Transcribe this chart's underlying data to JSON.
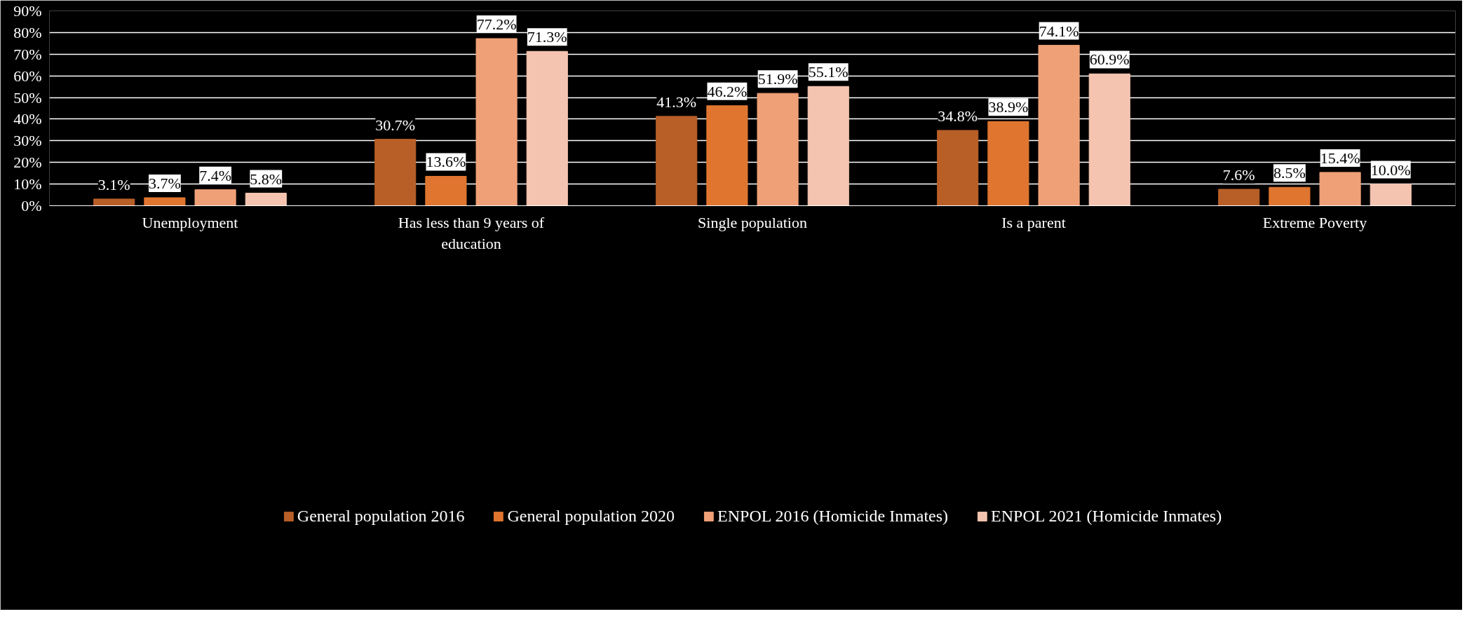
{
  "chart_data": {
    "type": "bar",
    "categories": [
      "Unemployment",
      "Has less than 9 years of education",
      "Single population",
      "Is a parent",
      "Extreme Poverty"
    ],
    "series": [
      {
        "name": "General population 2016",
        "color": "#b85f27",
        "values": [
          3.1,
          30.7,
          41.3,
          34.8,
          7.6
        ],
        "value_labels": [
          "3.1%",
          "30.7%",
          "41.3%",
          "34.8%",
          "7.6%"
        ]
      },
      {
        "name": "General population 2020",
        "color": "#e07530",
        "values": [
          3.7,
          13.6,
          46.2,
          38.9,
          8.5
        ],
        "value_labels": [
          "3.7%",
          "13.6%",
          "46.2%",
          "38.9%",
          "8.5%"
        ]
      },
      {
        "name": "ENPOL 2016 (Homicide Inmates)",
        "color": "#f0a077",
        "values": [
          7.4,
          77.2,
          51.9,
          74.1,
          15.4
        ],
        "value_labels": [
          "7.4%",
          "77.2%",
          "51.9%",
          "74.1%",
          "15.4%"
        ]
      },
      {
        "name": "ENPOL 2021 (Homicide Inmates)",
        "color": "#f5c4b0",
        "values": [
          5.8,
          71.3,
          55.1,
          60.9,
          10.0
        ],
        "value_labels": [
          "5.8%",
          "71.3%",
          "55.1%",
          "60.9%",
          "10.0%"
        ]
      }
    ],
    "ylim": [
      0,
      90
    ],
    "yticks": [
      {
        "value": 0,
        "label": "0%"
      },
      {
        "value": 10,
        "label": "10%"
      },
      {
        "value": 20,
        "label": "20%"
      },
      {
        "value": 30,
        "label": "30%"
      },
      {
        "value": 40,
        "label": "40%"
      },
      {
        "value": 50,
        "label": "50%"
      },
      {
        "value": 60,
        "label": "60%"
      },
      {
        "value": 70,
        "label": "70%"
      },
      {
        "value": 80,
        "label": "80%"
      },
      {
        "value": 90,
        "label": "90%"
      }
    ],
    "grid": "y",
    "legend": "bottom"
  }
}
